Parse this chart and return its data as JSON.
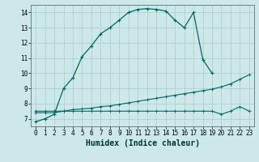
{
  "title": "",
  "xlabel": "Humidex (Indice chaleur)",
  "ylabel": "",
  "bg_color": "#cce8e8",
  "grid_color": "#aacccc",
  "line_color": "#006666",
  "xlim": [
    -0.5,
    23.5
  ],
  "ylim": [
    6.5,
    14.5
  ],
  "yticks": [
    7,
    8,
    9,
    10,
    11,
    12,
    13,
    14
  ],
  "xticks": [
    0,
    1,
    2,
    3,
    4,
    5,
    6,
    7,
    8,
    9,
    10,
    11,
    12,
    13,
    14,
    15,
    16,
    17,
    18,
    19,
    20,
    21,
    22,
    23
  ],
  "line1_x": [
    0,
    1,
    2,
    3,
    4,
    5,
    6,
    7,
    8,
    9,
    10,
    11,
    12,
    13,
    14,
    15,
    16,
    17,
    18,
    19
  ],
  "line1_y": [
    6.8,
    7.0,
    7.3,
    9.0,
    9.7,
    11.1,
    11.8,
    12.6,
    13.0,
    13.5,
    14.0,
    14.2,
    14.25,
    14.2,
    14.1,
    13.5,
    13.0,
    14.0,
    10.9,
    10.0
  ],
  "line2_x": [
    0,
    1,
    2,
    3,
    4,
    5,
    6,
    7,
    8,
    9,
    10,
    11,
    12,
    13,
    14,
    15,
    16,
    17,
    18,
    19,
    20,
    21,
    22,
    23
  ],
  "line2_y": [
    7.5,
    7.5,
    7.5,
    7.5,
    7.6,
    7.65,
    7.7,
    7.8,
    7.85,
    7.95,
    8.05,
    8.15,
    8.25,
    8.35,
    8.45,
    8.55,
    8.65,
    8.75,
    8.85,
    8.95,
    9.1,
    9.3,
    9.6,
    9.9
  ],
  "line3_x": [
    0,
    1,
    2,
    3,
    4,
    5,
    6,
    7,
    8,
    9,
    10,
    11,
    12,
    13,
    14,
    15,
    16,
    17,
    18,
    19,
    20,
    21,
    22,
    23
  ],
  "line3_y": [
    7.4,
    7.4,
    7.4,
    7.5,
    7.5,
    7.5,
    7.5,
    7.5,
    7.5,
    7.5,
    7.5,
    7.5,
    7.5,
    7.5,
    7.5,
    7.5,
    7.5,
    7.5,
    7.5,
    7.5,
    7.3,
    7.5,
    7.8,
    7.5
  ],
  "tick_fontsize": 5.5,
  "label_fontsize": 7.0
}
